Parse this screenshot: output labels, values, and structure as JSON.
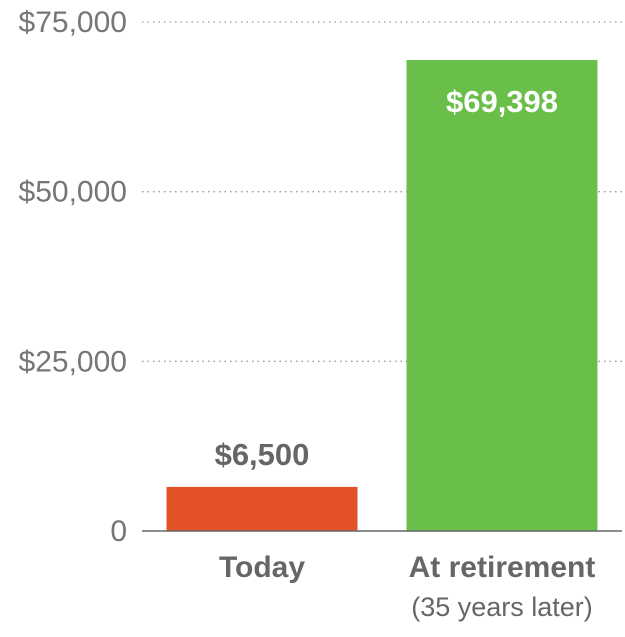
{
  "chart_data": {
    "type": "bar",
    "categories": [
      "Today",
      "At retirement"
    ],
    "category_sublabels": [
      "",
      "(35 years later)"
    ],
    "values": [
      6500,
      69398
    ],
    "value_labels": [
      "$6,500",
      "$69,398"
    ],
    "ylim": [
      0,
      75000
    ],
    "yticks": [
      0,
      25000,
      50000,
      75000
    ],
    "ytick_labels": [
      "0",
      "$25,000",
      "$50,000",
      "$75,000"
    ],
    "grid": true,
    "legend": "none",
    "colors": {
      "bars": [
        "#e4522a",
        "#6abf4b"
      ],
      "value_label_outside": "#666666",
      "value_label_inside": "#ffffff",
      "grid": "#999999",
      "axis": "#666666"
    }
  }
}
